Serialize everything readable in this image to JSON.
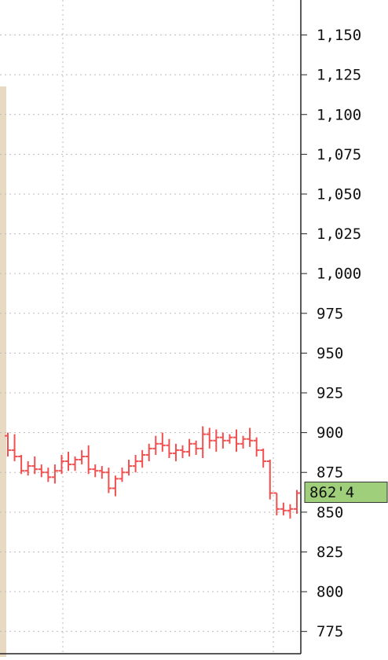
{
  "chart_data": {
    "type": "ohlc",
    "color": "#f05050",
    "open": [
      898,
      889,
      885,
      876,
      879,
      877,
      875,
      872,
      876,
      882,
      880,
      883,
      885,
      877,
      876,
      875,
      865,
      871,
      875,
      879,
      882,
      886,
      890,
      893,
      892,
      887,
      889,
      888,
      893,
      890,
      899,
      895,
      897,
      895,
      897,
      893,
      896,
      895,
      889,
      882,
      862,
      852,
      851,
      852
    ],
    "high": [
      900,
      899,
      886,
      882,
      885,
      880,
      878,
      880,
      886,
      888,
      885,
      889,
      892,
      880,
      879,
      878,
      873,
      878,
      883,
      886,
      889,
      893,
      898,
      900,
      896,
      893,
      892,
      896,
      895,
      904,
      903,
      902,
      900,
      899,
      902,
      898,
      903,
      897,
      890,
      883,
      862,
      856,
      855,
      864
    ],
    "low": [
      885,
      882,
      874,
      873,
      874,
      872,
      869,
      868,
      874,
      876,
      876,
      880,
      874,
      872,
      871,
      862,
      860,
      869,
      873,
      875,
      878,
      882,
      886,
      888,
      884,
      882,
      884,
      885,
      886,
      884,
      890,
      888,
      890,
      893,
      888,
      890,
      891,
      885,
      878,
      858,
      848,
      848,
      846,
      849
    ],
    "close": [
      889,
      885,
      876,
      879,
      877,
      875,
      872,
      876,
      882,
      880,
      883,
      885,
      877,
      876,
      875,
      865,
      871,
      875,
      879,
      882,
      886,
      890,
      893,
      892,
      887,
      889,
      888,
      893,
      890,
      899,
      895,
      897,
      895,
      897,
      893,
      896,
      895,
      889,
      882,
      862,
      852,
      851,
      852,
      862
    ],
    "ylim": [
      761,
      1172
    ],
    "yticks": [
      {
        "value": 1150,
        "label": "1,150"
      },
      {
        "value": 1125,
        "label": "1,125"
      },
      {
        "value": 1100,
        "label": "1,100"
      },
      {
        "value": 1075,
        "label": "1,075"
      },
      {
        "value": 1050,
        "label": "1,050"
      },
      {
        "value": 1025,
        "label": "1,025"
      },
      {
        "value": 1000,
        "label": "1,000"
      },
      975,
      950,
      925,
      900,
      875,
      850,
      825,
      800,
      775
    ],
    "grid": true,
    "last_price": {
      "value": 862.5,
      "label": "862'4"
    }
  }
}
